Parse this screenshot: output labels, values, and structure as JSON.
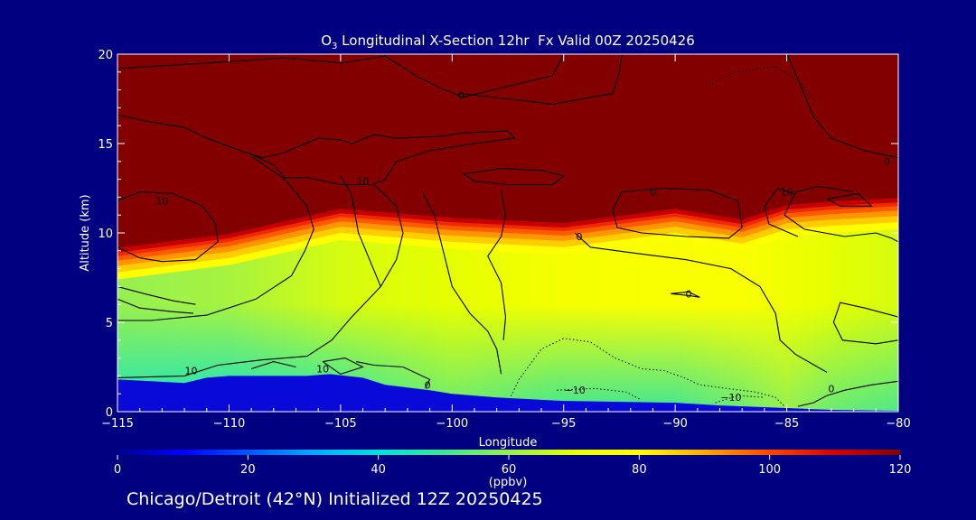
{
  "colors": {
    "background": "#000080",
    "text": "#ffffff",
    "contour": "#000000",
    "terrain": "#0a0ad8"
  },
  "chart_data": {
    "type": "heatmap",
    "title_prefix": "O",
    "title_subscript": "3",
    "title_rest": " Longitudinal X-Section 12hr  Fx Valid 00Z 20250426",
    "xlabel": "Longitude",
    "ylabel": "Altitude (km)",
    "xlim": [
      -115,
      -80
    ],
    "ylim": [
      0,
      20
    ],
    "xticks": [
      -115,
      -110,
      -105,
      -100,
      -95,
      -90,
      -85,
      -80
    ],
    "xtick_labels": [
      "−115",
      "−110",
      "−105",
      "−100",
      "−95",
      "−90",
      "−85",
      "−80"
    ],
    "yticks": [
      0,
      5,
      10,
      15,
      20
    ],
    "ytick_labels": [
      "0",
      "5",
      "10",
      "15",
      "20"
    ],
    "colorbar": {
      "ticks": [
        0,
        20,
        40,
        60,
        80,
        100,
        120
      ],
      "tick_labels": [
        "0",
        "20",
        "40",
        "60",
        "80",
        "100",
        "120"
      ],
      "unit": "(ppbv)",
      "range": [
        0,
        120
      ],
      "colormap": "rainbow"
    },
    "ozone_profile": {
      "longitude": [
        -115,
        -110,
        -105,
        -100,
        -95,
        -90,
        -87,
        -85,
        -83,
        -80
      ],
      "lower_boundary_alt_km": [
        9.0,
        9.8,
        11.2,
        10.7,
        10.4,
        11.2,
        10.6,
        11.4,
        11.6,
        11.8
      ],
      "surface_ppbv": [
        45,
        42,
        45,
        55,
        50,
        50,
        55,
        60,
        55,
        52
      ],
      "midlevel_ppbv": [
        60,
        62,
        68,
        70,
        76,
        78,
        78,
        74,
        70,
        68
      ],
      "upper_ppbv": 120
    },
    "terrain": {
      "longitude": [
        -115,
        -113.5,
        -112,
        -111,
        -110,
        -108,
        -106.5,
        -105.5,
        -104,
        -103,
        -101,
        -100,
        -98,
        -95,
        -90,
        -88,
        -85,
        -83,
        -80
      ],
      "altitude_km": [
        1.8,
        1.7,
        1.6,
        1.9,
        2.0,
        2.0,
        2.0,
        2.1,
        1.9,
        1.5,
        1.2,
        1.0,
        0.8,
        0.6,
        0.5,
        0.35,
        0.2,
        0.1,
        0.05
      ]
    },
    "contour_labels": [
      {
        "text": "0",
        "lon": -99.6,
        "alt": 17.7
      },
      {
        "text": "10",
        "lon": -104.0,
        "alt": 12.9
      },
      {
        "text": "10",
        "lon": -113.0,
        "alt": 11.8
      },
      {
        "text": "0",
        "lon": -91.0,
        "alt": 12.3
      },
      {
        "text": "10",
        "lon": -85.0,
        "alt": 12.3
      },
      {
        "text": "0",
        "lon": -80.5,
        "alt": 14.0
      },
      {
        "text": "0",
        "lon": -89.4,
        "alt": 6.6
      },
      {
        "text": "10",
        "lon": -111.7,
        "alt": 2.3
      },
      {
        "text": "10",
        "lon": -105.8,
        "alt": 2.4
      },
      {
        "text": "0",
        "lon": -101.1,
        "alt": 1.5
      },
      {
        "text": "−10",
        "lon": -94.5,
        "alt": 1.2
      },
      {
        "text": "−10",
        "lon": -87.5,
        "alt": 0.8
      },
      {
        "text": "0",
        "lon": -83.0,
        "alt": 1.3
      },
      {
        "text": "0",
        "lon": -94.3,
        "alt": 9.8
      }
    ],
    "contours_solid": [
      [
        [
          -115,
          19.2
        ],
        [
          -111,
          19.5
        ],
        [
          -107.5,
          19.8
        ],
        [
          -105,
          19.5
        ],
        [
          -103.5,
          19.8
        ],
        [
          -103,
          19.9
        ],
        [
          -101.5,
          18.7
        ],
        [
          -100.5,
          18.1
        ],
        [
          -99.5,
          17.6
        ],
        [
          -97.5,
          18.2
        ],
        [
          -95.5,
          18.8
        ],
        [
          -95,
          20
        ]
      ],
      [
        [
          -99.7,
          17.8
        ],
        [
          -97.5,
          17.5
        ],
        [
          -95.5,
          17.2
        ],
        [
          -92.8,
          17.8
        ],
        [
          -92.5,
          19
        ],
        [
          -92.4,
          20
        ]
      ],
      [
        [
          -115,
          16.6
        ],
        [
          -113.5,
          16.2
        ],
        [
          -112,
          15.9
        ],
        [
          -111,
          15.3
        ],
        [
          -109.5,
          14.6
        ],
        [
          -108.5,
          14.2
        ],
        [
          -107.5,
          14.5
        ],
        [
          -106,
          15.3
        ],
        [
          -105,
          15.2
        ],
        [
          -104.5,
          15.0
        ],
        [
          -103.5,
          15.5
        ],
        [
          -102.5,
          15.3
        ],
        [
          -100.5,
          15.4
        ],
        [
          -99.5,
          15.6
        ],
        [
          -97.5,
          15.7
        ],
        [
          -97.2,
          15.3
        ],
        [
          -99,
          15
        ],
        [
          -101,
          14.6
        ],
        [
          -102.5,
          14
        ],
        [
          -103,
          13
        ],
        [
          -103.6,
          12.7
        ],
        [
          -105,
          12.7
        ],
        [
          -106.5,
          13.1
        ],
        [
          -107.5,
          13.1
        ],
        [
          -108,
          13.8
        ],
        [
          -109,
          14.4
        ]
      ],
      [
        [
          -99.5,
          13.3
        ],
        [
          -97.8,
          13.6
        ],
        [
          -96,
          13.5
        ],
        [
          -95,
          13.2
        ],
        [
          -95.5,
          12.7
        ],
        [
          -97.5,
          12.7
        ],
        [
          -99,
          12.9
        ],
        [
          -99.5,
          13.3
        ]
      ],
      [
        [
          -115,
          11.8
        ],
        [
          -114,
          12.3
        ],
        [
          -112.5,
          12.2
        ],
        [
          -111.2,
          11.5
        ],
        [
          -110.6,
          10.5
        ],
        [
          -110.5,
          9.5
        ],
        [
          -111.5,
          8.5
        ],
        [
          -113,
          8.4
        ],
        [
          -114,
          8.6
        ],
        [
          -115,
          9.2
        ]
      ],
      [
        [
          -109,
          14.3
        ],
        [
          -107.5,
          13.0
        ],
        [
          -106.5,
          11.5
        ],
        [
          -106.2,
          10.2
        ],
        [
          -106.6,
          9.0
        ],
        [
          -107.2,
          7.6
        ],
        [
          -108.8,
          6.3
        ],
        [
          -111,
          5.4
        ],
        [
          -113.5,
          5.1
        ],
        [
          -115,
          5.1
        ]
      ],
      [
        [
          -103.5,
          12.7
        ],
        [
          -102.5,
          11.5
        ],
        [
          -102.2,
          10.0
        ],
        [
          -102.5,
          8.5
        ],
        [
          -103.2,
          7.0
        ],
        [
          -104.5,
          5.3
        ],
        [
          -105.4,
          4.0
        ],
        [
          -106.5,
          3.1
        ],
        [
          -108.5,
          2.9
        ],
        [
          -110.5,
          2.6
        ],
        [
          -112,
          2.0
        ],
        [
          -115,
          1.9
        ]
      ],
      [
        [
          -105,
          13.2
        ],
        [
          -104.5,
          12.1
        ],
        [
          -104.2,
          10.0
        ],
        [
          -103.6,
          8.2
        ],
        [
          -103.2,
          7.0
        ]
      ],
      [
        [
          -101.3,
          12.2
        ],
        [
          -100.8,
          11.0
        ],
        [
          -100.4,
          9.0
        ],
        [
          -100,
          7.0
        ],
        [
          -99.2,
          5.5
        ],
        [
          -98.4,
          4.5
        ],
        [
          -98.0,
          3.5
        ],
        [
          -97.8,
          2.1
        ]
      ],
      [
        [
          -97.8,
          12.4
        ],
        [
          -97.6,
          11.0
        ],
        [
          -97.8,
          9.8
        ],
        [
          -98.4,
          8.7
        ],
        [
          -97.8,
          7.2
        ],
        [
          -97.6,
          5.3
        ],
        [
          -97.7,
          4.0
        ]
      ],
      [
        [
          -104.3,
          2.8
        ],
        [
          -103.5,
          2.6
        ],
        [
          -102.2,
          2.5
        ],
        [
          -101.0,
          1.8
        ],
        [
          -101.2,
          1.3
        ]
      ],
      [
        [
          -105.8,
          2.8
        ],
        [
          -104.8,
          3.0
        ],
        [
          -104.0,
          2.5
        ],
        [
          -105.0,
          2.1
        ],
        [
          -105.8,
          2.8
        ]
      ],
      [
        [
          -107.0,
          2.5
        ],
        [
          -108.0,
          2.8
        ],
        [
          -109.0,
          2.4
        ]
      ],
      [
        [
          -92.4,
          12.3
        ],
        [
          -90.5,
          12.5
        ],
        [
          -88.5,
          12.4
        ],
        [
          -87.2,
          11.8
        ],
        [
          -87.0,
          10.3
        ],
        [
          -87.6,
          9.7
        ],
        [
          -89.5,
          9.8
        ],
        [
          -91.5,
          10.0
        ],
        [
          -92.6,
          10.3
        ],
        [
          -92.8,
          11.3
        ],
        [
          -92.4,
          12.3
        ]
      ],
      [
        [
          -94.5,
          10.0
        ],
        [
          -93.8,
          9.2
        ],
        [
          -92.0,
          8.9
        ],
        [
          -89.5,
          8.5
        ],
        [
          -87.5,
          8.0
        ],
        [
          -86.2,
          7.0
        ],
        [
          -85.5,
          5.5
        ],
        [
          -85.3,
          4.0
        ],
        [
          -84.6,
          3.2
        ],
        [
          -83.2,
          2.2
        ]
      ],
      [
        [
          -90.2,
          6.6
        ],
        [
          -89.4,
          6.5
        ],
        [
          -88.9,
          6.4
        ],
        [
          -89.4,
          6.7
        ],
        [
          -90.2,
          6.6
        ]
      ],
      [
        [
          -82.0,
          12.3
        ],
        [
          -83.6,
          12.6
        ],
        [
          -84.6,
          12.3
        ],
        [
          -85.1,
          11.0
        ],
        [
          -84.2,
          10.2
        ],
        [
          -82.4,
          9.8
        ],
        [
          -81.0,
          10.0
        ],
        [
          -80.3,
          9.7
        ],
        [
          -80.0,
          9.5
        ]
      ],
      [
        [
          -80.0,
          14.2
        ],
        [
          -81.5,
          14.6
        ],
        [
          -83,
          15.3
        ],
        [
          -83.8,
          16.5
        ],
        [
          -84.3,
          18.0
        ],
        [
          -84.8,
          19.5
        ],
        [
          -85,
          20
        ]
      ],
      [
        [
          -83.2,
          11.9
        ],
        [
          -82.6,
          11.5
        ],
        [
          -81.2,
          11.5
        ],
        [
          -81.8,
          12.2
        ],
        [
          -83.2,
          11.9
        ]
      ],
      [
        [
          -84.7,
          12.2
        ],
        [
          -85.4,
          12.5
        ],
        [
          -86.0,
          11.5
        ],
        [
          -85.8,
          10.5
        ],
        [
          -84.5,
          9.8
        ]
      ],
      [
        [
          -80.0,
          5.3
        ],
        [
          -81.5,
          5.8
        ],
        [
          -82.6,
          6.1
        ],
        [
          -82.9,
          5.0
        ],
        [
          -82.5,
          4.0
        ],
        [
          -81.0,
          3.8
        ],
        [
          -80.0,
          4.0
        ]
      ],
      [
        [
          -80.0,
          1.7
        ],
        [
          -81.2,
          1.5
        ],
        [
          -82.4,
          1.2
        ],
        [
          -83.2,
          0.9
        ],
        [
          -83.8,
          0.5
        ],
        [
          -84.5,
          0.3
        ]
      ],
      [
        [
          -115,
          7.0
        ],
        [
          -113.8,
          6.6
        ],
        [
          -112.5,
          6.2
        ],
        [
          -111.5,
          6.0
        ]
      ],
      [
        [
          -115,
          6.3
        ],
        [
          -114,
          5.8
        ],
        [
          -112.6,
          5.6
        ],
        [
          -111.6,
          5.5
        ]
      ]
    ],
    "contours_dashed": [
      [
        [
          -97.5,
          0.5
        ],
        [
          -97.0,
          1.8
        ],
        [
          -96.0,
          3.5
        ],
        [
          -95.0,
          4.1
        ],
        [
          -93.8,
          3.9
        ],
        [
          -92.7,
          3.0
        ],
        [
          -91.5,
          2.4
        ],
        [
          -90.5,
          2.3
        ],
        [
          -89.6,
          1.9
        ],
        [
          -88.9,
          1.5
        ],
        [
          -87.7,
          1.3
        ],
        [
          -86.4,
          1.1
        ],
        [
          -85.5,
          0.8
        ],
        [
          -85.1,
          0.3
        ]
      ],
      [
        [
          -95.3,
          1.2
        ],
        [
          -93.6,
          1.3
        ],
        [
          -92.2,
          1.1
        ],
        [
          -91.6,
          0.7
        ]
      ],
      [
        [
          -88.5,
          18.3
        ],
        [
          -87.3,
          19.0
        ],
        [
          -85.5,
          19.3
        ],
        [
          -84.5,
          18.5
        ],
        [
          -83.8,
          17.5
        ]
      ],
      [
        [
          -88.2,
          0.5
        ],
        [
          -87.2,
          0.9
        ],
        [
          -86.0,
          0.8
        ]
      ]
    ]
  }
}
